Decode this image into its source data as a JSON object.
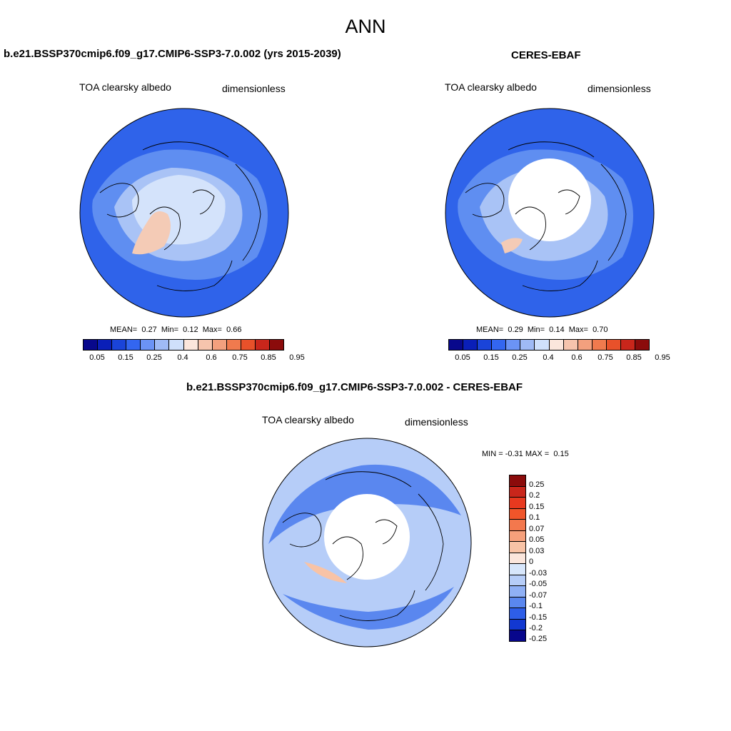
{
  "title": "ANN",
  "panels": [
    {
      "header": "b.e21.BSSP370cmip6.f09_g17.CMIP6-SSP3-7.0.002 (yrs 2015-2039)",
      "variable": "TOA clearsky albedo",
      "units": "dimensionless",
      "stats": {
        "mean_label": "MEAN=",
        "mean": "0.27",
        "min_label": "Min=",
        "min": "0.12",
        "max_label": "Max=",
        "max": "0.66"
      }
    },
    {
      "header": "CERES-EBAF",
      "variable": "TOA clearsky albedo",
      "units": "dimensionless",
      "stats": {
        "mean_label": "MEAN=",
        "mean": "0.29",
        "min_label": "Min=",
        "min": "0.14",
        "max_label": "Max=",
        "max": "0.70"
      }
    },
    {
      "header": "b.e21.BSSP370cmip6.f09_g17.CMIP6-SSP3-7.0.002 - CERES-EBAF",
      "variable": "TOA clearsky albedo",
      "units": "dimensionless",
      "stats": {
        "min_label": "MIN =",
        "min": "-0.31",
        "max_label": "MAX =",
        "max": "0.15"
      }
    }
  ],
  "colorbar_abs": {
    "colors": [
      "#08088c",
      "#0a1fb8",
      "#1a44d9",
      "#3366f0",
      "#6b93f5",
      "#9fbaf5",
      "#cfe0fb",
      "#fbe6dc",
      "#f6c4ad",
      "#f3a07e",
      "#f07a4e",
      "#e8512a",
      "#c9261b",
      "#8b0b0b"
    ],
    "tick_labels": [
      "0.05",
      "0.15",
      "0.25",
      "0.4",
      "0.6",
      "0.75",
      "0.85",
      "0.95"
    ]
  },
  "colorbar_diff": {
    "colors": [
      "#8b0b0b",
      "#c9261b",
      "#e8391f",
      "#f0552a",
      "#f3784d",
      "#f6a07b",
      "#f8c3a6",
      "#fbe6dc",
      "#d7e6fb",
      "#b6cdf8",
      "#8fb0f5",
      "#5a87ef",
      "#2e5ee8",
      "#1238d1",
      "#07068c"
    ],
    "tick_labels": [
      "0.25",
      "0.2",
      "0.15",
      "0.1",
      "0.07",
      "0.05",
      "0.03",
      "0",
      "-0.03",
      "-0.05",
      "-0.07",
      "-0.1",
      "-0.15",
      "-0.2",
      "-0.25"
    ]
  },
  "map_colors": {
    "ocean": "#2f63ea",
    "mid": "#5f8ef1",
    "light": "#a9c3f6",
    "sea_ice": "#d4e3fb",
    "greenland": "#f4cbb6",
    "missing": "#ffffff",
    "diff_base": "#b6cdf8",
    "diff_neg": "#5a87ef",
    "diff_pos": "#f8c3a6"
  }
}
